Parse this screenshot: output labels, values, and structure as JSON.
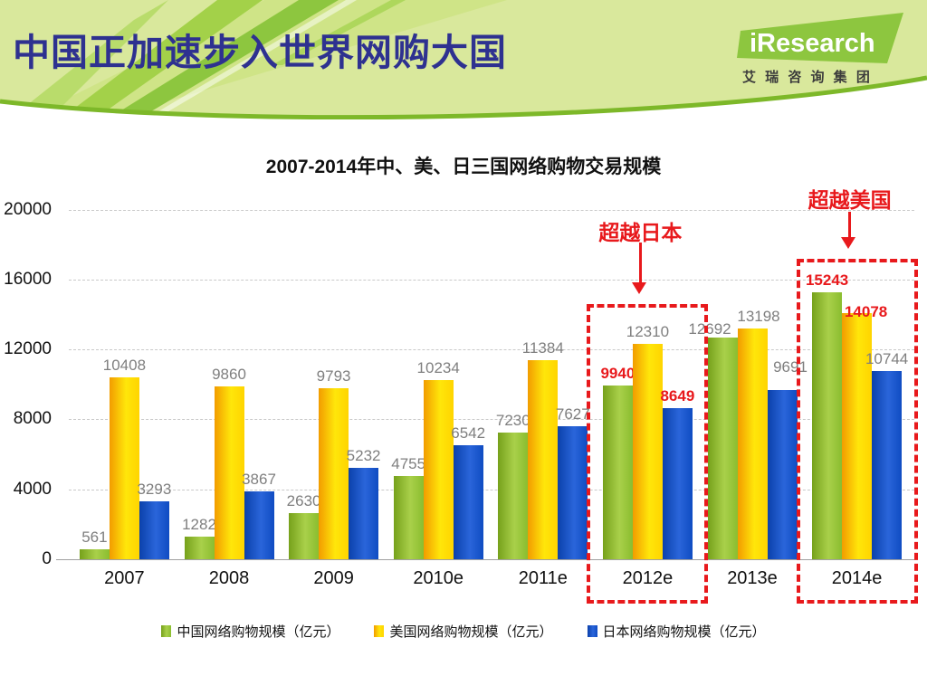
{
  "header": {
    "title": "中国正加速步入世界网购大国",
    "logo": {
      "brand": "iResearch",
      "subtitle": "艾 瑞 咨 询 集 团"
    }
  },
  "colors": {
    "header_title": "#2e3190",
    "header_bg": "#d9e89c",
    "brand_green": "#8dc63f",
    "china_bar": [
      "#76a11b",
      "#a9d04a",
      "#8abd2f"
    ],
    "usa_bar": [
      "#f29c00",
      "#ffe60a",
      "#ffd400"
    ],
    "japan_bar": [
      "#0b41ab",
      "#2a65da",
      "#0f4cc2"
    ],
    "highlight_red": "#e8191c",
    "value_label_gray": "#7f7f7f",
    "gridline": "#c9c9c9"
  },
  "chart_data": {
    "type": "bar",
    "title": "2007-2014年中、美、日三国网络购物交易规模",
    "categories": [
      "2007",
      "2008",
      "2009",
      "2010e",
      "2011e",
      "2012e",
      "2013e",
      "2014e"
    ],
    "series": [
      {
        "name": "中国网络购物规模（亿元）",
        "key": "china",
        "values": [
          561,
          1282,
          2630,
          4755,
          7230,
          9940,
          12692,
          15243
        ],
        "red_label_indices": [
          5,
          7
        ]
      },
      {
        "name": "美国网络购物规模（亿元）",
        "key": "usa",
        "values": [
          10408,
          9860,
          9793,
          10234,
          11384,
          12310,
          13198,
          14078
        ],
        "red_label_indices": [
          7
        ]
      },
      {
        "name": "日本网络购物规模（亿元）",
        "key": "japan",
        "values": [
          3293,
          3867,
          5232,
          6542,
          7627,
          8649,
          9691,
          10744
        ],
        "red_label_indices": [
          5
        ]
      }
    ],
    "y_ticks": [
      0,
      4000,
      8000,
      12000,
      16000,
      20000
    ],
    "ylim": [
      0,
      20000
    ],
    "grid": "horizontal-dashed",
    "legend_position": "bottom-center",
    "annotations": [
      {
        "text": "超越日本",
        "target_category": "2012e"
      },
      {
        "text": "超越美国",
        "target_category": "2014e"
      }
    ],
    "highlight_boxes": [
      {
        "target_category": "2012e"
      },
      {
        "target_category": "2014e"
      }
    ]
  }
}
